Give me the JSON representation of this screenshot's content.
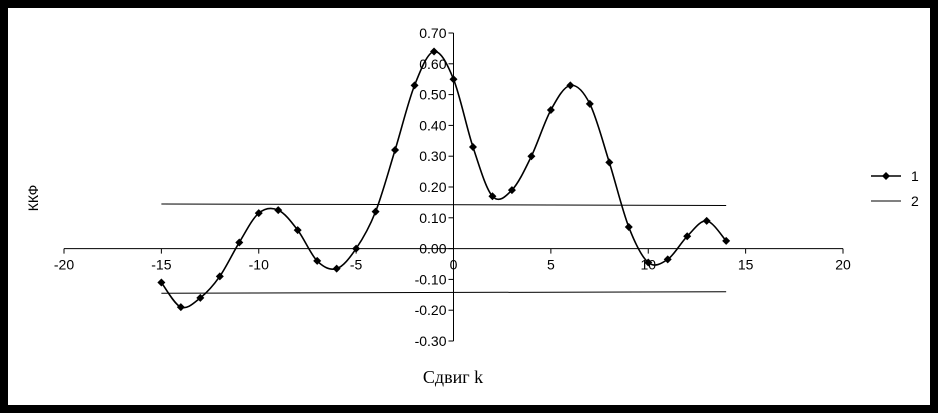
{
  "chart_data": {
    "type": "line",
    "xlabel": "Сдвиг k",
    "ylabel": "ККФ",
    "xlim": [
      -20,
      20
    ],
    "ylim": [
      -0.3,
      0.7
    ],
    "x_ticks": [
      "-20",
      "-15",
      "-10",
      "-5",
      "0",
      "5",
      "10",
      "15",
      "20"
    ],
    "y_ticks": [
      "0.70",
      "0.60",
      "0.50",
      "0.40",
      "0.30",
      "0.20",
      "0.10",
      "0.00",
      "-0.10",
      "-0.20",
      "-0.30"
    ],
    "x_tick_values": [
      -20,
      -15,
      -10,
      -5,
      0,
      5,
      10,
      15,
      20
    ],
    "y_tick_values": [
      0.7,
      0.6,
      0.5,
      0.4,
      0.3,
      0.2,
      0.1,
      0.0,
      -0.1,
      -0.2,
      -0.3
    ],
    "legend_position": "right",
    "series": [
      {
        "name": "1",
        "marker": "diamond",
        "x": [
          -15,
          -14,
          -13,
          -12,
          -11,
          -10,
          -9,
          -8,
          -7,
          -6,
          -5,
          -4,
          -3,
          -2,
          -1,
          0,
          1,
          2,
          3,
          4,
          5,
          6,
          7,
          8,
          9,
          10,
          11,
          12,
          13,
          14
        ],
        "y": [
          -0.11,
          -0.19,
          -0.16,
          -0.09,
          0.02,
          0.115,
          0.125,
          0.06,
          -0.04,
          -0.065,
          0.0,
          0.12,
          0.32,
          0.53,
          0.64,
          0.55,
          0.33,
          0.17,
          0.19,
          0.3,
          0.45,
          0.53,
          0.47,
          0.28,
          0.07,
          -0.045,
          -0.035,
          0.04,
          0.09,
          0.025
        ]
      },
      {
        "name": "2",
        "marker": "none",
        "x": [
          -15,
          14
        ],
        "y": [
          0.145,
          0.14
        ],
        "mirror_y": [
          -0.145,
          -0.14
        ]
      }
    ]
  }
}
